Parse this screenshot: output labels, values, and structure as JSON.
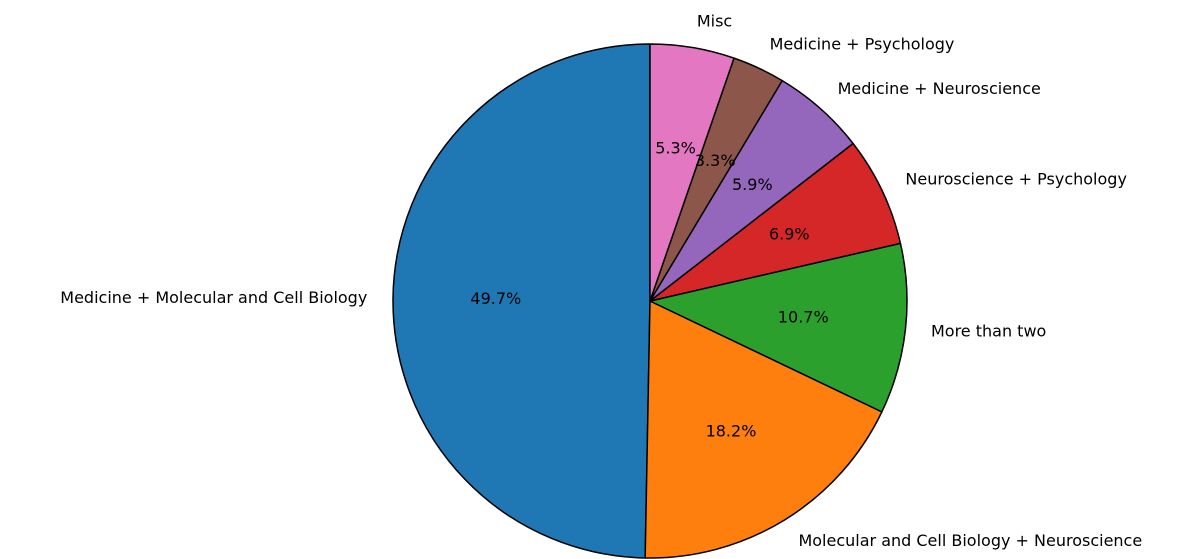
{
  "chart_data": {
    "type": "pie",
    "categories": [
      "Medicine + Molecular and Cell Biology",
      "Molecular and Cell Biology + Neuroscience",
      "More than two",
      "Neuroscience + Psychology",
      "Medicine + Neuroscience",
      "Medicine + Psychology",
      "Misc"
    ],
    "values": [
      49.7,
      18.2,
      10.7,
      6.9,
      5.9,
      3.3,
      5.3
    ],
    "value_labels": [
      "49.7%",
      "18.2%",
      "10.7%",
      "6.9%",
      "5.9%",
      "3.3%",
      "5.3%"
    ],
    "colors": [
      "#1f77b4",
      "#ff7f0e",
      "#2ca02c",
      "#d62728",
      "#9467bd",
      "#8c564b",
      "#e377c2"
    ],
    "start_angle": 90
  }
}
